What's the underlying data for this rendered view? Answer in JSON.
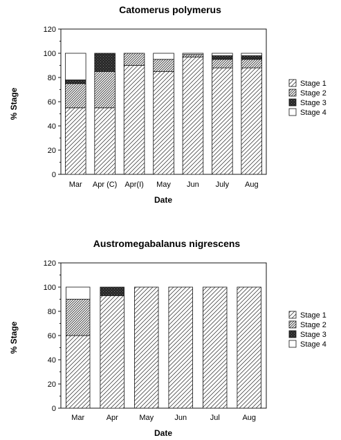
{
  "chart_data": [
    {
      "type": "bar",
      "stacked": true,
      "title": "Catomerus polymerus",
      "xlabel": "Date",
      "ylabel": "% Stage",
      "ylim": [
        0,
        120
      ],
      "yticks": [
        0,
        20,
        40,
        60,
        80,
        100,
        120
      ],
      "grid": false,
      "legend_position": "right",
      "categories": [
        "Mar",
        "Apr (C)",
        "Apr(I)",
        "May",
        "Jun",
        "July",
        "Aug"
      ],
      "series": [
        {
          "name": "Stage 1",
          "pattern": "diagonal-sparse",
          "values": [
            55,
            55,
            90,
            85,
            97,
            88,
            88
          ]
        },
        {
          "name": "Stage 2",
          "pattern": "diagonal-dense",
          "values": [
            20,
            30,
            10,
            10,
            2,
            7,
            7
          ]
        },
        {
          "name": "Stage 3",
          "pattern": "dark-stipple",
          "values": [
            3,
            15,
            0,
            0,
            0,
            3,
            3
          ]
        },
        {
          "name": "Stage 4",
          "pattern": "white",
          "values": [
            22,
            0,
            0,
            5,
            1,
            2,
            2
          ]
        }
      ]
    },
    {
      "type": "bar",
      "stacked": true,
      "title": "Austromegabalanus nigrescens",
      "xlabel": "Date",
      "ylabel": "% Stage",
      "ylim": [
        0,
        120
      ],
      "yticks": [
        0,
        20,
        40,
        60,
        80,
        100,
        120
      ],
      "grid": false,
      "legend_position": "right",
      "categories": [
        "Mar",
        "Apr",
        "May",
        "Jun",
        "Jul",
        "Aug"
      ],
      "series": [
        {
          "name": "Stage 1",
          "pattern": "diagonal-sparse",
          "values": [
            60,
            93,
            100,
            100,
            100,
            100
          ]
        },
        {
          "name": "Stage 2",
          "pattern": "diagonal-dense",
          "values": [
            30,
            0,
            0,
            0,
            0,
            0
          ]
        },
        {
          "name": "Stage 3",
          "pattern": "dark-stipple",
          "values": [
            0,
            7,
            0,
            0,
            0,
            0
          ]
        },
        {
          "name": "Stage 4",
          "pattern": "white",
          "values": [
            10,
            0,
            0,
            0,
            0,
            0
          ]
        }
      ]
    }
  ]
}
